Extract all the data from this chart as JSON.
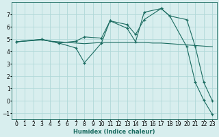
{
  "xlabel": "Humidex (Indice chaleur)",
  "background_color": "#d8eeee",
  "grid_color": "#b0d8d8",
  "line_color": "#1a6b60",
  "xlim": [
    -0.5,
    23.5
  ],
  "ylim": [
    -1.5,
    8.0
  ],
  "xticks": [
    0,
    1,
    2,
    3,
    4,
    5,
    6,
    7,
    8,
    9,
    10,
    11,
    12,
    13,
    14,
    15,
    16,
    17,
    18,
    19,
    20,
    21,
    22,
    23
  ],
  "yticks": [
    -1,
    0,
    1,
    2,
    3,
    4,
    5,
    6,
    7
  ],
  "line1_x": [
    0,
    1,
    2,
    3,
    4,
    5,
    6,
    7,
    8,
    9,
    10,
    11,
    12,
    13,
    14,
    15,
    16,
    17,
    18,
    19,
    20,
    21,
    22,
    23
  ],
  "line1_y": [
    4.8,
    4.85,
    4.9,
    4.95,
    4.85,
    4.8,
    4.75,
    4.7,
    4.65,
    4.7,
    4.75,
    4.75,
    4.75,
    4.75,
    4.75,
    4.75,
    4.7,
    4.7,
    4.65,
    4.6,
    4.55,
    4.5,
    4.45,
    4.4
  ],
  "line2_x": [
    0,
    3,
    5,
    7,
    8,
    10,
    11,
    13,
    14,
    15,
    17,
    18,
    20,
    21,
    22,
    23
  ],
  "line2_y": [
    4.8,
    5.0,
    4.7,
    4.85,
    5.2,
    5.1,
    6.5,
    6.2,
    5.4,
    6.6,
    7.5,
    6.9,
    6.6,
    4.4,
    1.5,
    0.0
  ],
  "line3_x": [
    0,
    3,
    5,
    7,
    8,
    10,
    11,
    13,
    14,
    15,
    17,
    18,
    20,
    21,
    22,
    23
  ],
  "line3_y": [
    4.8,
    5.0,
    4.7,
    4.3,
    3.1,
    4.7,
    6.5,
    5.9,
    4.8,
    7.2,
    7.5,
    6.9,
    4.4,
    1.5,
    0.05,
    -1.1
  ]
}
